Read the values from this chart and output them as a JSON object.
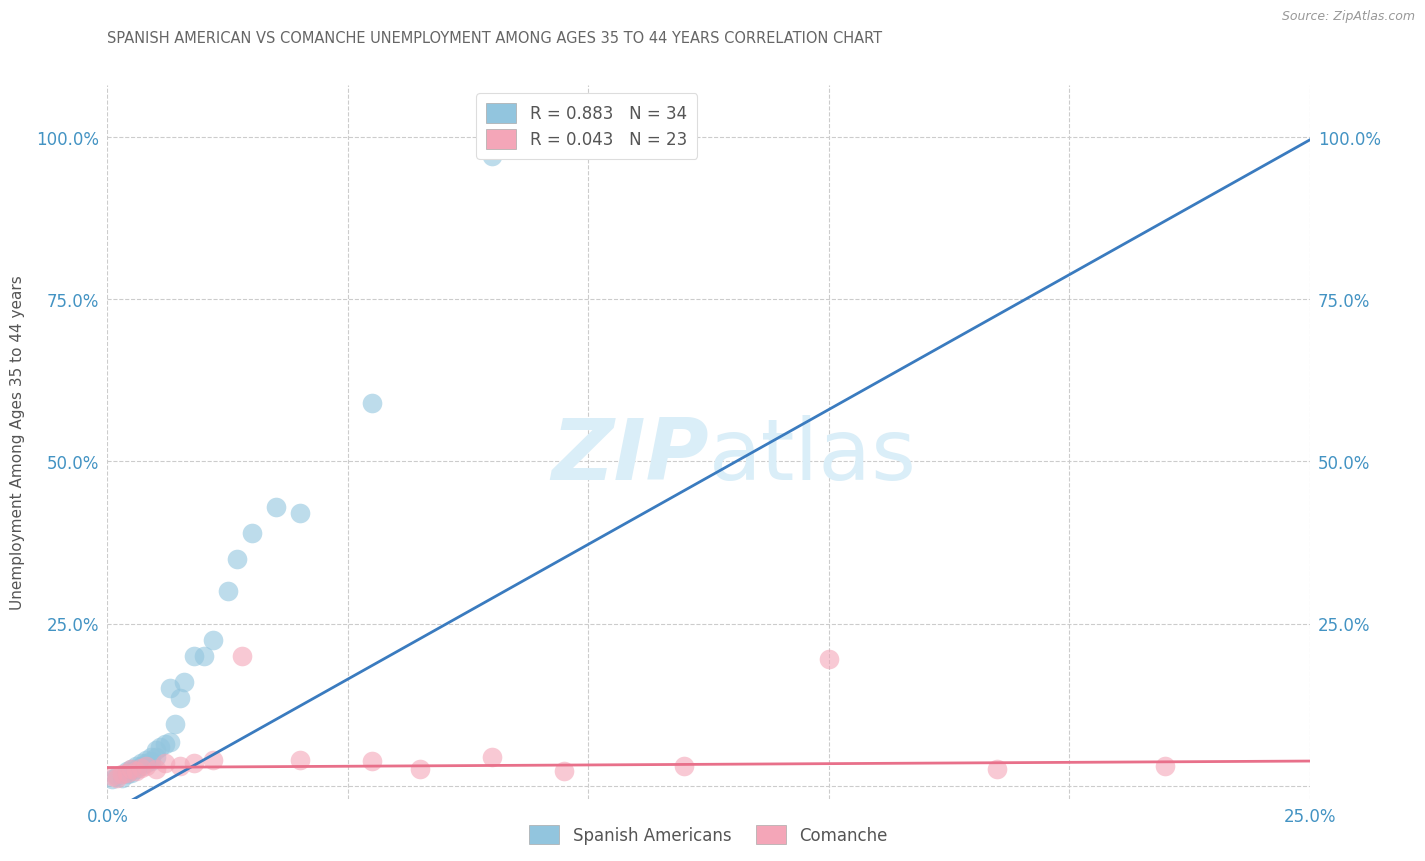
{
  "title": "SPANISH AMERICAN VS COMANCHE UNEMPLOYMENT AMONG AGES 35 TO 44 YEARS CORRELATION CHART",
  "source": "Source: ZipAtlas.com",
  "ylabel": "Unemployment Among Ages 35 to 44 years",
  "xlim": [
    0.0,
    0.25
  ],
  "ylim": [
    -0.02,
    1.08
  ],
  "xticks": [
    0.0,
    0.05,
    0.1,
    0.15,
    0.2,
    0.25
  ],
  "yticks": [
    0.0,
    0.25,
    0.5,
    0.75,
    1.0
  ],
  "xticklabels": [
    "0.0%",
    "",
    "",
    "",
    "",
    "25.0%"
  ],
  "yticklabels": [
    "",
    "25.0%",
    "50.0%",
    "75.0%",
    "100.0%"
  ],
  "right_yticklabels": [
    "",
    "25.0%",
    "50.0%",
    "75.0%",
    "100.0%"
  ],
  "blue_R": "0.883",
  "blue_N": "34",
  "pink_R": "0.043",
  "pink_N": "23",
  "blue_color": "#92c5de",
  "pink_color": "#f4a6b8",
  "blue_line_color": "#3a7bbf",
  "pink_line_color": "#e8708a",
  "background_color": "#ffffff",
  "grid_color": "#cccccc",
  "title_color": "#666666",
  "axis_label_color": "#555555",
  "tick_color_blue": "#4393c3",
  "tick_color_pink": "#e8708a",
  "watermark_color": "#daeef8",
  "legend_label_blue": "Spanish Americans",
  "legend_label_pink": "Comanche",
  "blue_scatter_x": [
    0.001,
    0.002,
    0.003,
    0.004,
    0.004,
    0.005,
    0.005,
    0.006,
    0.006,
    0.007,
    0.007,
    0.008,
    0.008,
    0.009,
    0.009,
    0.01,
    0.01,
    0.011,
    0.012,
    0.013,
    0.013,
    0.014,
    0.015,
    0.016,
    0.018,
    0.02,
    0.022,
    0.025,
    0.027,
    0.03,
    0.035,
    0.04,
    0.055,
    0.08
  ],
  "blue_scatter_y": [
    0.01,
    0.015,
    0.012,
    0.018,
    0.022,
    0.02,
    0.025,
    0.025,
    0.03,
    0.03,
    0.035,
    0.035,
    0.04,
    0.038,
    0.045,
    0.045,
    0.055,
    0.06,
    0.065,
    0.068,
    0.15,
    0.095,
    0.135,
    0.16,
    0.2,
    0.2,
    0.225,
    0.3,
    0.35,
    0.39,
    0.43,
    0.42,
    0.59,
    0.97
  ],
  "pink_scatter_x": [
    0.001,
    0.002,
    0.003,
    0.004,
    0.005,
    0.006,
    0.007,
    0.008,
    0.01,
    0.012,
    0.015,
    0.018,
    0.022,
    0.028,
    0.04,
    0.055,
    0.065,
    0.08,
    0.095,
    0.12,
    0.15,
    0.185,
    0.22
  ],
  "pink_scatter_y": [
    0.015,
    0.012,
    0.018,
    0.02,
    0.025,
    0.022,
    0.028,
    0.03,
    0.025,
    0.035,
    0.03,
    0.035,
    0.04,
    0.2,
    0.04,
    0.038,
    0.025,
    0.045,
    0.022,
    0.03,
    0.195,
    0.025,
    0.03
  ],
  "blue_line_x": [
    -0.01,
    0.28
  ],
  "blue_line_y": [
    -0.085,
    1.12
  ],
  "pink_line_x": [
    0.0,
    0.25
  ],
  "pink_line_y": [
    0.028,
    0.038
  ]
}
